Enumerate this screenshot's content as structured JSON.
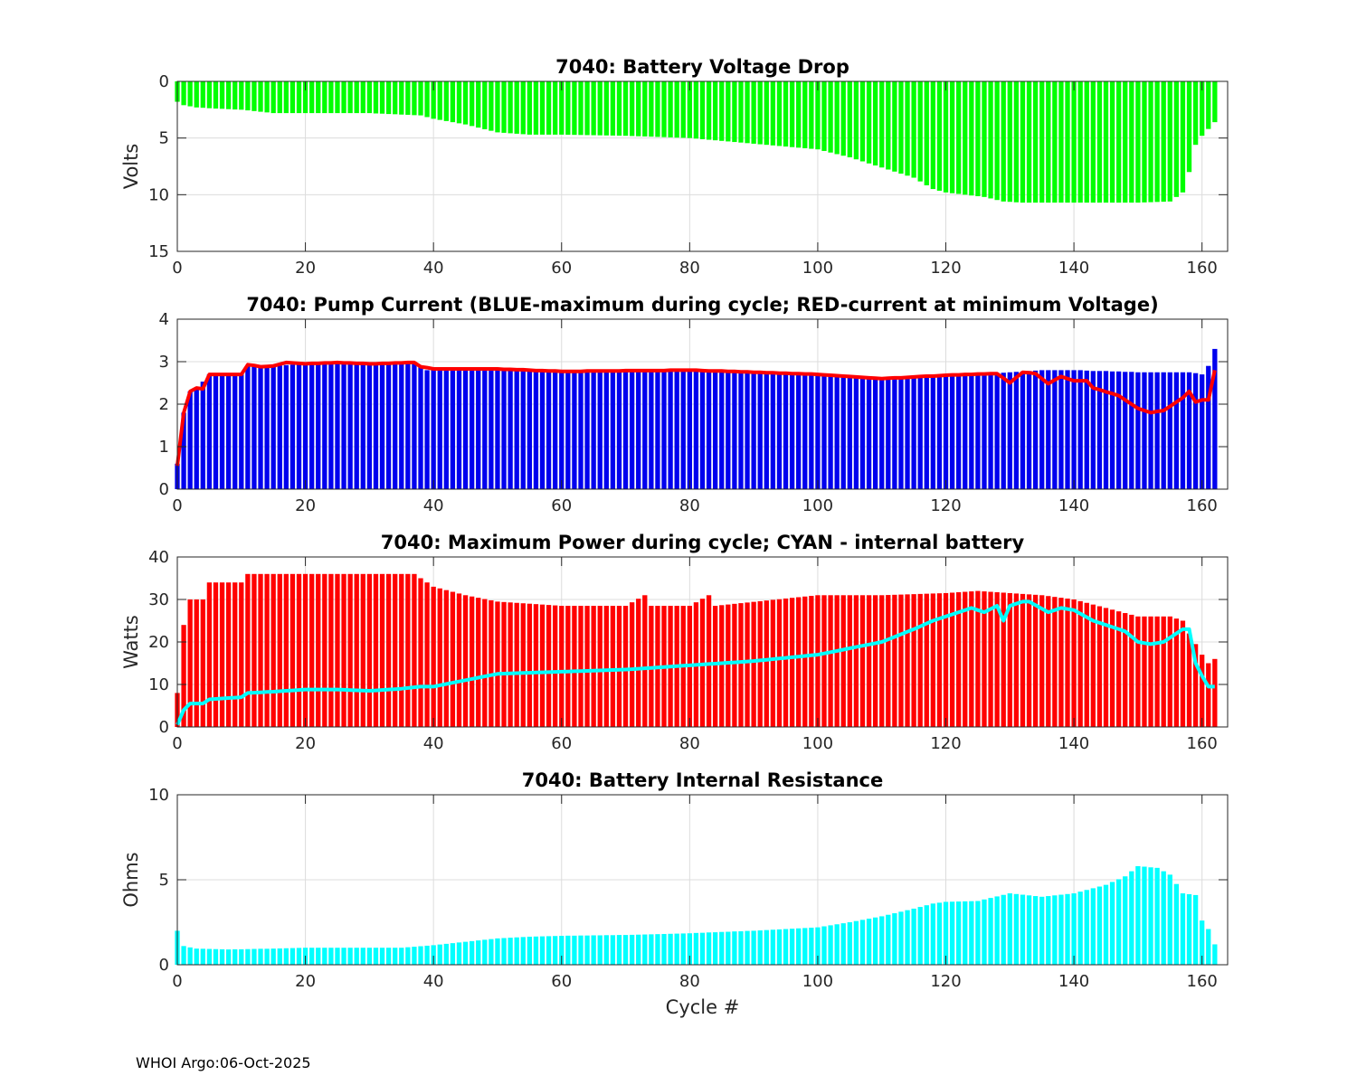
{
  "chart_data": [
    {
      "type": "bar",
      "title": "7040: Battery Voltage Drop",
      "xlabel": "",
      "ylabel": "Volts",
      "xlim": [
        0,
        164
      ],
      "ylim": [
        0,
        15
      ],
      "y_reversed": true,
      "xticks": [
        0,
        20,
        40,
        60,
        80,
        100,
        120,
        140,
        160
      ],
      "yticks": [
        0,
        5,
        10,
        15
      ],
      "bar_color": "#00ff00",
      "anchors": [
        [
          0,
          1.8
        ],
        [
          1,
          2.1
        ],
        [
          3,
          2.3
        ],
        [
          6,
          2.4
        ],
        [
          10,
          2.5
        ],
        [
          15,
          2.8
        ],
        [
          20,
          2.8
        ],
        [
          30,
          2.8
        ],
        [
          38,
          3.0
        ],
        [
          40,
          3.3
        ],
        [
          45,
          3.8
        ],
        [
          50,
          4.5
        ],
        [
          55,
          4.7
        ],
        [
          60,
          4.7
        ],
        [
          70,
          4.8
        ],
        [
          80,
          5.0
        ],
        [
          90,
          5.5
        ],
        [
          100,
          6.0
        ],
        [
          105,
          6.7
        ],
        [
          110,
          7.6
        ],
        [
          115,
          8.5
        ],
        [
          118,
          9.5
        ],
        [
          120,
          9.8
        ],
        [
          123,
          10.0
        ],
        [
          126,
          10.2
        ],
        [
          129,
          10.6
        ],
        [
          132,
          10.7
        ],
        [
          140,
          10.7
        ],
        [
          150,
          10.7
        ],
        [
          155,
          10.6
        ],
        [
          157,
          9.8
        ],
        [
          158,
          8.0
        ],
        [
          159,
          5.6
        ],
        [
          160,
          4.8
        ],
        [
          162,
          3.6
        ]
      ]
    },
    {
      "type": "bar",
      "title": "7040: Pump Current (BLUE-maximum during cycle; RED-current at minimum Voltage)",
      "xlabel": "",
      "ylabel": "",
      "xlim": [
        0,
        164
      ],
      "ylim": [
        0,
        4
      ],
      "xticks": [
        0,
        20,
        40,
        60,
        80,
        100,
        120,
        140,
        160
      ],
      "yticks": [
        0,
        1,
        2,
        3,
        4
      ],
      "bar_color": "#0000ee",
      "line_color": "#ff0000",
      "series": [
        {
          "name": "maximum during cycle",
          "anchors": [
            [
              0,
              0.6
            ],
            [
              1,
              1.8
            ],
            [
              2,
              2.3
            ],
            [
              3,
              2.35
            ],
            [
              5,
              2.7
            ],
            [
              10,
              2.7
            ],
            [
              11,
              2.9
            ],
            [
              15,
              2.9
            ],
            [
              20,
              2.95
            ],
            [
              25,
              2.95
            ],
            [
              30,
              2.95
            ],
            [
              37,
              2.95
            ],
            [
              38,
              2.9
            ],
            [
              39,
              2.8
            ],
            [
              50,
              2.8
            ],
            [
              60,
              2.75
            ],
            [
              80,
              2.8
            ],
            [
              100,
              2.7
            ],
            [
              110,
              2.6
            ],
            [
              120,
              2.65
            ],
            [
              130,
              2.75
            ],
            [
              135,
              2.8
            ],
            [
              140,
              2.8
            ],
            [
              150,
              2.75
            ],
            [
              158,
              2.75
            ],
            [
              160,
              2.7
            ],
            [
              161,
              2.9
            ],
            [
              162,
              3.3
            ]
          ]
        },
        {
          "name": "current at minimum Voltage",
          "anchors": [
            [
              0,
              0.55
            ],
            [
              1,
              1.8
            ],
            [
              2,
              2.3
            ],
            [
              3,
              2.38
            ],
            [
              4,
              2.36
            ],
            [
              5,
              2.7
            ],
            [
              10,
              2.7
            ],
            [
              11,
              2.93
            ],
            [
              13,
              2.88
            ],
            [
              15,
              2.9
            ],
            [
              17,
              2.98
            ],
            [
              20,
              2.95
            ],
            [
              25,
              2.98
            ],
            [
              30,
              2.95
            ],
            [
              37,
              2.98
            ],
            [
              38,
              2.88
            ],
            [
              40,
              2.83
            ],
            [
              50,
              2.83
            ],
            [
              60,
              2.77
            ],
            [
              80,
              2.8
            ],
            [
              100,
              2.7
            ],
            [
              110,
              2.6
            ],
            [
              120,
              2.68
            ],
            [
              128,
              2.72
            ],
            [
              130,
              2.5
            ],
            [
              132,
              2.75
            ],
            [
              134,
              2.72
            ],
            [
              136,
              2.48
            ],
            [
              138,
              2.65
            ],
            [
              140,
              2.55
            ],
            [
              142,
              2.55
            ],
            [
              143,
              2.38
            ],
            [
              147,
              2.2
            ],
            [
              150,
              1.9
            ],
            [
              152,
              1.8
            ],
            [
              154,
              1.85
            ],
            [
              157,
              2.15
            ],
            [
              158,
              2.3
            ],
            [
              159,
              2.05
            ],
            [
              160,
              2.1
            ],
            [
              161,
              2.1
            ],
            [
              162,
              2.8
            ]
          ]
        }
      ]
    },
    {
      "type": "bar",
      "title": "7040: Maximum Power during cycle; CYAN - internal battery",
      "xlabel": "",
      "ylabel": "Watts",
      "xlim": [
        0,
        164
      ],
      "ylim": [
        0,
        40
      ],
      "xticks": [
        0,
        20,
        40,
        60,
        80,
        100,
        120,
        140,
        160
      ],
      "yticks": [
        0,
        10,
        20,
        30,
        40
      ],
      "bar_color": "#ff0000",
      "line_color": "#00ffff",
      "series": [
        {
          "name": "Maximum Power",
          "anchors": [
            [
              0,
              8
            ],
            [
              1,
              24
            ],
            [
              2,
              30
            ],
            [
              4,
              30
            ],
            [
              5,
              34
            ],
            [
              10,
              34
            ],
            [
              11,
              36
            ],
            [
              20,
              36
            ],
            [
              30,
              36
            ],
            [
              37,
              36
            ],
            [
              38,
              35
            ],
            [
              40,
              33
            ],
            [
              45,
              31
            ],
            [
              50,
              29.5
            ],
            [
              55,
              29
            ],
            [
              60,
              28.5
            ],
            [
              70,
              28.5
            ],
            [
              73,
              31
            ],
            [
              74,
              28.5
            ],
            [
              80,
              28.5
            ],
            [
              83,
              31
            ],
            [
              84,
              28.5
            ],
            [
              100,
              31
            ],
            [
              110,
              31
            ],
            [
              120,
              31.5
            ],
            [
              125,
              32
            ],
            [
              130,
              31.5
            ],
            [
              135,
              31
            ],
            [
              140,
              30
            ],
            [
              145,
              28
            ],
            [
              150,
              26
            ],
            [
              155,
              26
            ],
            [
              157,
              25
            ],
            [
              158,
              22
            ],
            [
              160,
              17
            ],
            [
              161,
              15
            ],
            [
              162,
              16
            ]
          ]
        },
        {
          "name": "internal battery",
          "anchors": [
            [
              0,
              0.5
            ],
            [
              1,
              4
            ],
            [
              2,
              5.5
            ],
            [
              4,
              5.5
            ],
            [
              5,
              6.5
            ],
            [
              10,
              7
            ],
            [
              11,
              8
            ],
            [
              15,
              8.3
            ],
            [
              20,
              8.8
            ],
            [
              25,
              8.8
            ],
            [
              30,
              8.5
            ],
            [
              35,
              9
            ],
            [
              38,
              9.5
            ],
            [
              40,
              9.5
            ],
            [
              45,
              11
            ],
            [
              50,
              12.5
            ],
            [
              60,
              13
            ],
            [
              70,
              13.5
            ],
            [
              80,
              14.5
            ],
            [
              90,
              15.5
            ],
            [
              100,
              17
            ],
            [
              105,
              18.5
            ],
            [
              110,
              20
            ],
            [
              115,
              23
            ],
            [
              118,
              25
            ],
            [
              120,
              26
            ],
            [
              122,
              27
            ],
            [
              124,
              28
            ],
            [
              126,
              27
            ],
            [
              128,
              28.5
            ],
            [
              129,
              25
            ],
            [
              130,
              28.5
            ],
            [
              132,
              29.5
            ],
            [
              133,
              29.5
            ],
            [
              136,
              27
            ],
            [
              138,
              28
            ],
            [
              140,
              27.5
            ],
            [
              143,
              25
            ],
            [
              145,
              24
            ],
            [
              148,
              22.5
            ],
            [
              150,
              20
            ],
            [
              152,
              19.5
            ],
            [
              154,
              20
            ],
            [
              157,
              23
            ],
            [
              158,
              23
            ],
            [
              159,
              15
            ],
            [
              160,
              12
            ],
            [
              161,
              9.5
            ],
            [
              162,
              9.5
            ]
          ]
        }
      ]
    },
    {
      "type": "bar",
      "title": "7040: Battery Internal Resistance",
      "xlabel": "Cycle #",
      "ylabel": "Ohms",
      "xlim": [
        0,
        164
      ],
      "ylim": [
        0,
        10
      ],
      "xticks": [
        0,
        20,
        40,
        60,
        80,
        100,
        120,
        140,
        160
      ],
      "yticks": [
        0,
        5,
        10
      ],
      "bar_color": "#00ffff",
      "anchors": [
        [
          0,
          2.0
        ],
        [
          1,
          1.1
        ],
        [
          3,
          0.95
        ],
        [
          8,
          0.9
        ],
        [
          15,
          0.95
        ],
        [
          20,
          1.0
        ],
        [
          30,
          1.0
        ],
        [
          35,
          1.0
        ],
        [
          40,
          1.15
        ],
        [
          45,
          1.35
        ],
        [
          50,
          1.55
        ],
        [
          55,
          1.65
        ],
        [
          60,
          1.7
        ],
        [
          70,
          1.75
        ],
        [
          80,
          1.85
        ],
        [
          90,
          2.0
        ],
        [
          100,
          2.2
        ],
        [
          105,
          2.5
        ],
        [
          110,
          2.85
        ],
        [
          115,
          3.3
        ],
        [
          118,
          3.6
        ],
        [
          120,
          3.7
        ],
        [
          125,
          3.75
        ],
        [
          130,
          4.2
        ],
        [
          135,
          4.0
        ],
        [
          140,
          4.2
        ],
        [
          145,
          4.7
        ],
        [
          148,
          5.2
        ],
        [
          150,
          5.8
        ],
        [
          153,
          5.7
        ],
        [
          155,
          5.3
        ],
        [
          157,
          4.2
        ],
        [
          159,
          4.1
        ],
        [
          160,
          2.6
        ],
        [
          161,
          2.1
        ],
        [
          162,
          1.2
        ]
      ]
    }
  ],
  "footer": {
    "text": "WHOI Argo:06-Oct-2025"
  }
}
